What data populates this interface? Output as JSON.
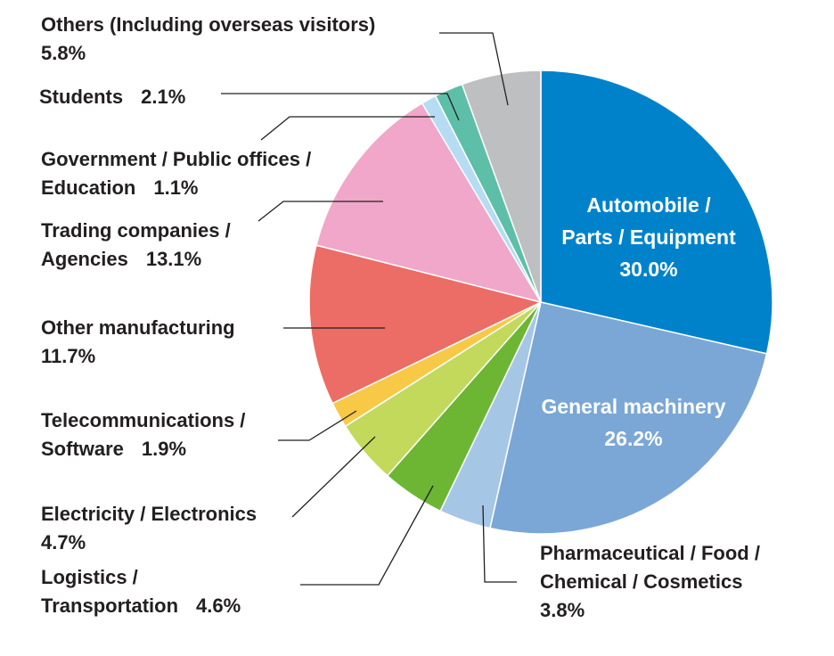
{
  "chart_data": {
    "type": "pie",
    "title": "",
    "slices": [
      {
        "label": "Automobile / Parts / Equipment",
        "value": 30.0,
        "value_label": "30.0%",
        "color": "#0082cb"
      },
      {
        "label": "General machinery",
        "value": 26.2,
        "value_label": "26.2%",
        "color": "#7aa7d6"
      },
      {
        "label": "Pharmaceutical / Food / Chemical / Cosmetics",
        "value": 3.8,
        "value_label": "3.8%",
        "color": "#a6c6e6"
      },
      {
        "label": "Logistics / Transportation",
        "value": 4.6,
        "value_label": "4.6%",
        "color": "#6cb634"
      },
      {
        "label": "Electricity / Electronics",
        "value": 4.7,
        "value_label": "4.7%",
        "color": "#c2d95b"
      },
      {
        "label": "Telecommunications / Software",
        "value": 1.9,
        "value_label": "1.9%",
        "color": "#f8c946"
      },
      {
        "label": "Other manufacturing",
        "value": 11.7,
        "value_label": "11.7%",
        "color": "#ec6d65"
      },
      {
        "label": "Trading companies / Agencies",
        "value": 13.1,
        "value_label": "13.1%",
        "color": "#f0a7c9"
      },
      {
        "label": "Government / Public offices / Education",
        "value": 1.1,
        "value_label": "1.1%",
        "color": "#b5dcf2"
      },
      {
        "label": "Students",
        "value": 2.1,
        "value_label": "2.1%",
        "color": "#5ebfa8"
      },
      {
        "label": "Others (Including overseas visitors)",
        "value": 5.8,
        "value_label": "5.8%",
        "color": "#bebfc0"
      }
    ]
  },
  "labels": {
    "automobile": {
      "line1": "Automobile /",
      "line2": "Parts / Equipment",
      "pct": "30.0%"
    },
    "general_machinery": {
      "line1": "General machinery",
      "pct": "26.2%"
    },
    "pharma": {
      "line1": "Pharmaceutical / Food /",
      "line2": "Chemical / Cosmetics",
      "pct": "3.8%"
    },
    "logistics": {
      "line1": "Logistics /",
      "line2": "Transportation",
      "pct": "4.6%"
    },
    "electricity": {
      "line1": "Electricity / Electronics",
      "pct": "4.7%"
    },
    "telecom": {
      "line1": "Telecommunications /",
      "line2": "Software",
      "pct": "1.9%"
    },
    "other_manufacturing": {
      "line1": "Other manufacturing",
      "pct": "11.7%"
    },
    "trading": {
      "line1": "Trading companies /",
      "line2": "Agencies",
      "pct": "13.1%"
    },
    "government": {
      "line1": "Government / Public offices /",
      "line2": "Education",
      "pct": "1.1%"
    },
    "students": {
      "line1": "Students",
      "pct": "2.1%"
    },
    "others": {
      "line1": "Others (Including overseas visitors)",
      "pct": "5.8%"
    }
  }
}
